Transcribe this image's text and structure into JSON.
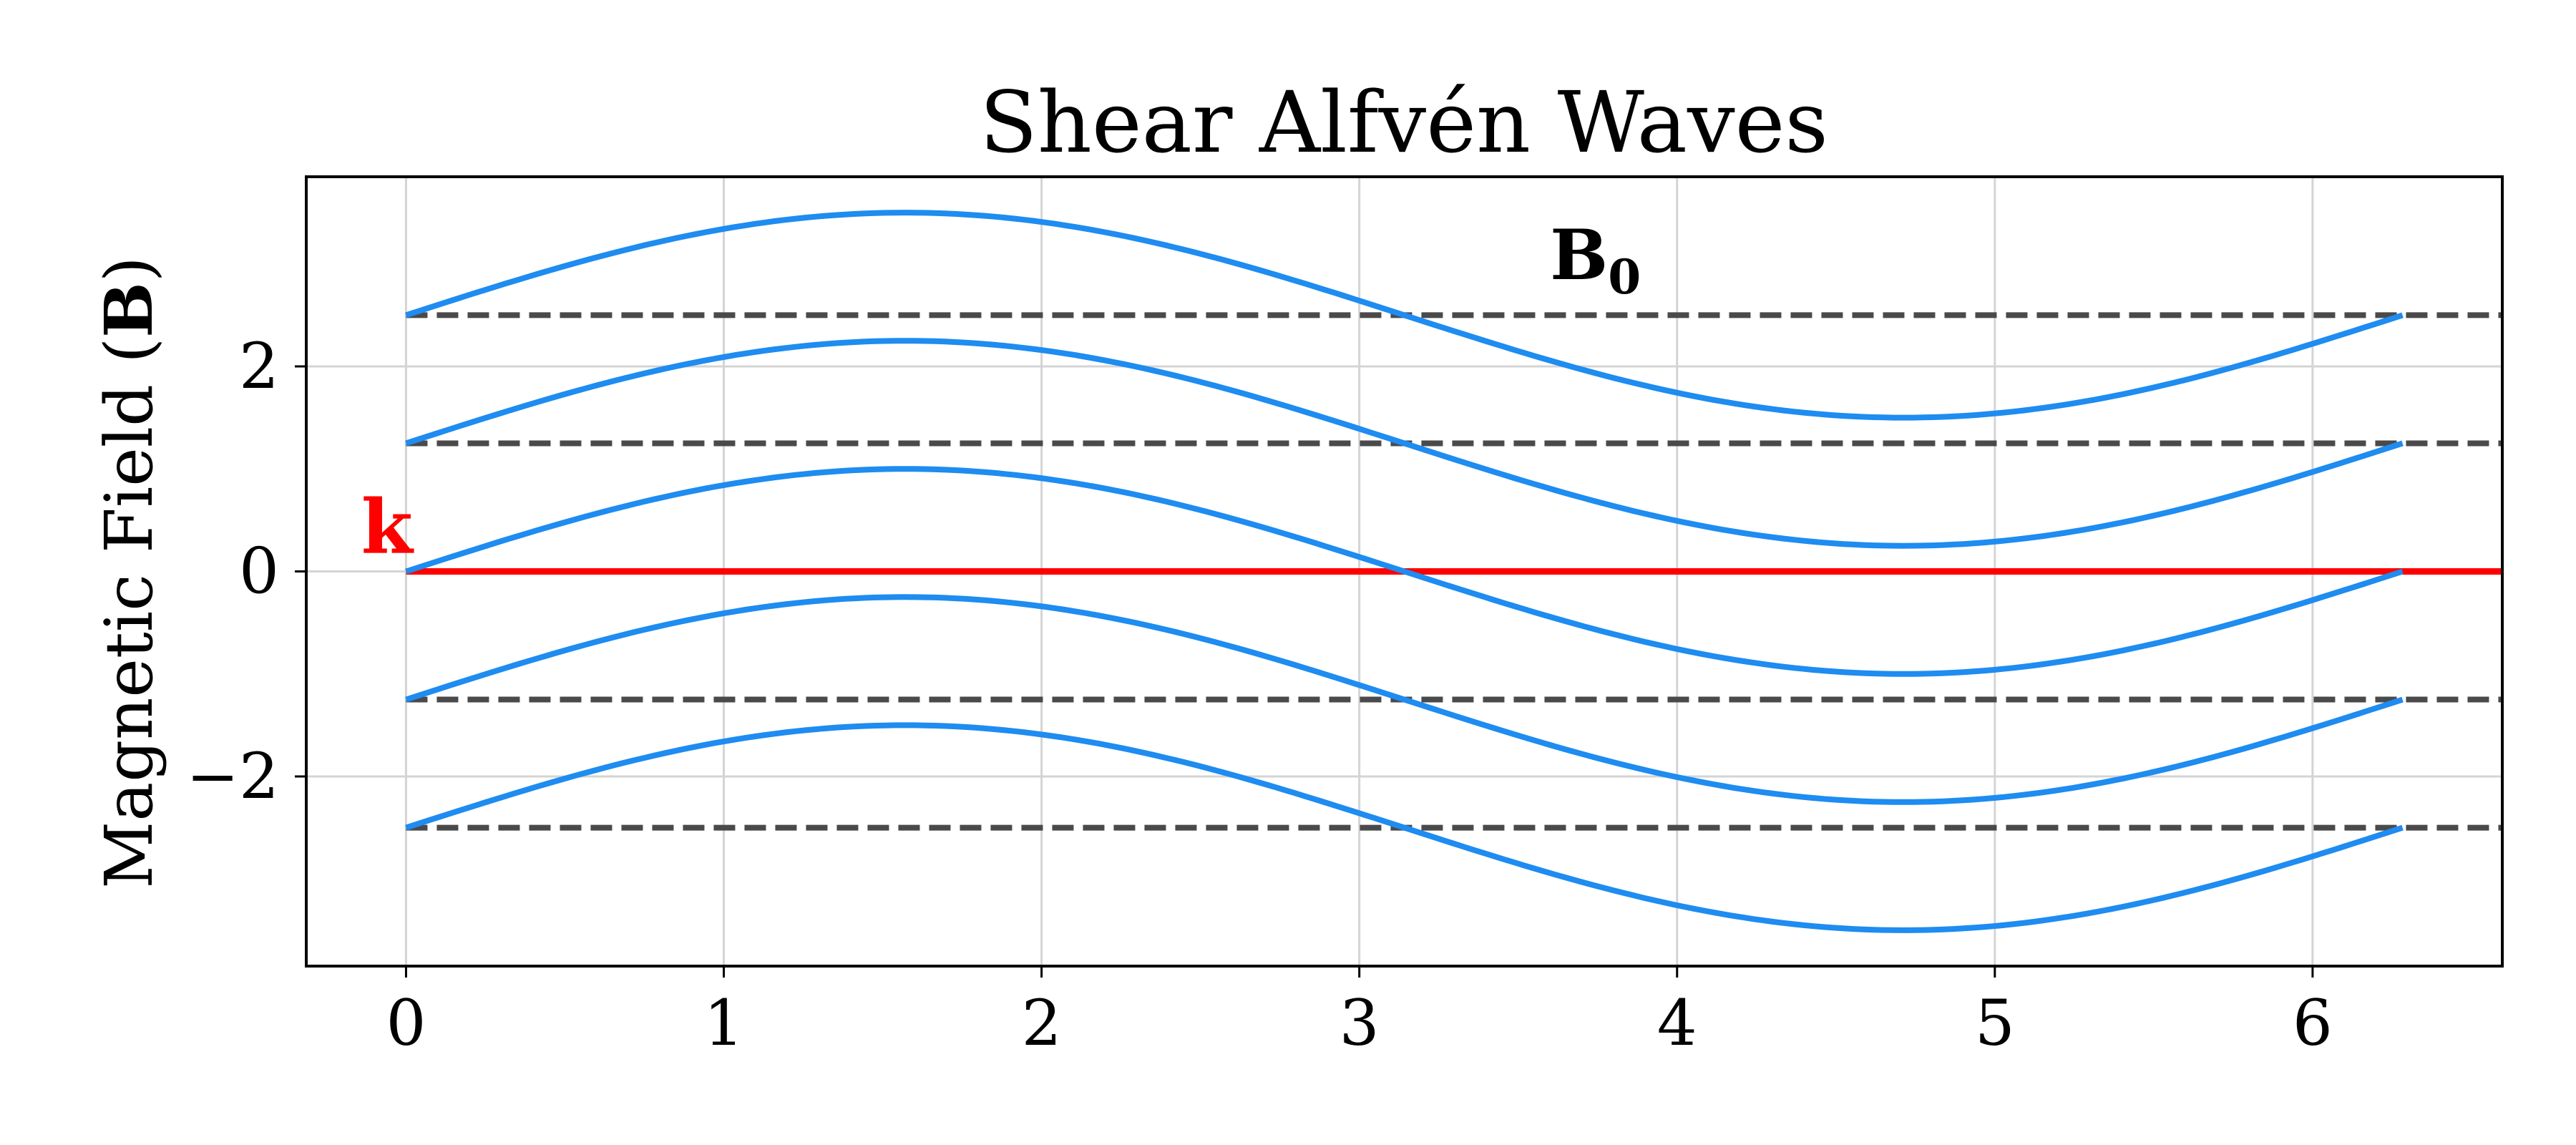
{
  "chart_data": {
    "type": "line",
    "title": "Shear Alfvén Waves",
    "xlabel": "",
    "ylabel_text": "Magnetic Field (",
    "ylabel_bold": "B",
    "ylabel_close": ")",
    "xlim": [
      -0.314,
      6.597
    ],
    "ylim": [
      -3.85,
      3.85
    ],
    "grid": true,
    "xticks": [
      0,
      1,
      2,
      3,
      4,
      5,
      6
    ],
    "xtick_labels": [
      "0",
      "1",
      "2",
      "3",
      "4",
      "5",
      "6"
    ],
    "yticks": [
      -2,
      0,
      2
    ],
    "ytick_labels": [
      "−2",
      "0",
      "2"
    ],
    "wave": {
      "function": "sin",
      "amplitude": 1.0,
      "x_start": 0,
      "x_end": 6.2832,
      "color": "#1e8cf0",
      "offsets": [
        2.5,
        1.25,
        0,
        -1.25,
        -2.5
      ]
    },
    "background_field_lines": {
      "color": "#4a4a4a",
      "style": "dashed",
      "y_values": [
        2.5,
        1.25,
        -1.25,
        -2.5
      ]
    },
    "wave_vector_line": {
      "color": "#ff0000",
      "y_value": 0
    },
    "annotations": {
      "b0": {
        "text": "B",
        "subscript": "0",
        "x": 3.6,
        "y": 2.85
      },
      "k": {
        "text": "k",
        "x": -0.06,
        "y": 0.18,
        "color": "#ff0000"
      }
    }
  }
}
